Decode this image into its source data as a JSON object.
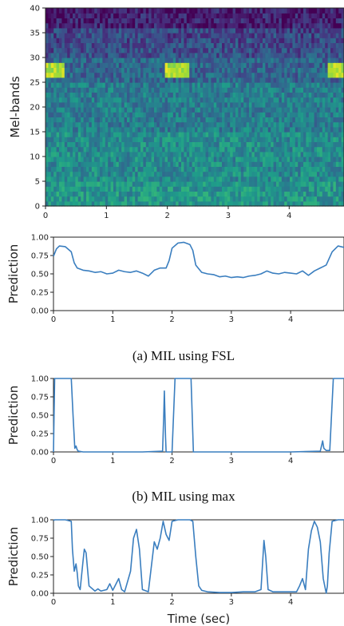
{
  "chart_data": [
    {
      "id": "spectrogram",
      "type": "heatmap",
      "title": "",
      "xlabel": "",
      "ylabel": "Mel-bands",
      "xlim": [
        0,
        4.9
      ],
      "ylim": [
        0,
        40
      ],
      "xticks": [
        "0",
        "1",
        "2",
        "3",
        "4"
      ],
      "yticks": [
        "0",
        "5",
        "10",
        "15",
        "20",
        "25",
        "30",
        "35",
        "40"
      ],
      "colormap": "viridis",
      "event_intervals": [
        [
          0.0,
          0.3
        ],
        [
          1.95,
          2.35
        ],
        [
          4.65,
          4.9
        ]
      ],
      "event_bands": [
        26,
        29
      ]
    },
    {
      "id": "fsl",
      "type": "line",
      "caption": "(a) MIL using FSL",
      "xlabel": "",
      "ylabel": "Prediction",
      "xlim": [
        0,
        4.9
      ],
      "ylim": [
        0,
        1
      ],
      "xticks": [
        "0",
        "1",
        "2",
        "3",
        "4"
      ],
      "yticks": [
        "0.00",
        "0.25",
        "0.50",
        "0.75",
        "1.00"
      ],
      "color": "#3a7ebf",
      "x": [
        0.0,
        0.05,
        0.1,
        0.2,
        0.3,
        0.35,
        0.4,
        0.5,
        0.6,
        0.7,
        0.8,
        0.9,
        1.0,
        1.1,
        1.2,
        1.3,
        1.4,
        1.5,
        1.6,
        1.7,
        1.8,
        1.9,
        1.95,
        2.0,
        2.1,
        2.2,
        2.3,
        2.35,
        2.4,
        2.5,
        2.6,
        2.7,
        2.8,
        2.9,
        3.0,
        3.1,
        3.2,
        3.3,
        3.4,
        3.5,
        3.6,
        3.7,
        3.8,
        3.9,
        4.0,
        4.1,
        4.2,
        4.3,
        4.4,
        4.5,
        4.55,
        4.6,
        4.7,
        4.8,
        4.9
      ],
      "y": [
        0.74,
        0.84,
        0.88,
        0.87,
        0.8,
        0.65,
        0.58,
        0.55,
        0.54,
        0.52,
        0.53,
        0.5,
        0.51,
        0.55,
        0.53,
        0.52,
        0.54,
        0.51,
        0.47,
        0.55,
        0.58,
        0.58,
        0.68,
        0.85,
        0.92,
        0.93,
        0.9,
        0.82,
        0.62,
        0.52,
        0.5,
        0.49,
        0.46,
        0.47,
        0.45,
        0.46,
        0.45,
        0.47,
        0.48,
        0.5,
        0.54,
        0.51,
        0.5,
        0.52,
        0.51,
        0.5,
        0.54,
        0.48,
        0.54,
        0.58,
        0.6,
        0.62,
        0.8,
        0.88,
        0.86
      ]
    },
    {
      "id": "max",
      "type": "line",
      "caption": "(b) MIL using max",
      "xlabel": "",
      "ylabel": "Prediction",
      "xlim": [
        0,
        4.9
      ],
      "ylim": [
        0,
        1
      ],
      "xticks": [
        "0",
        "1",
        "2",
        "3",
        "4"
      ],
      "yticks": [
        "0.00",
        "0.25",
        "0.50",
        "0.75",
        "1.00"
      ],
      "color": "#3a7ebf",
      "x": [
        0.0,
        0.02,
        0.05,
        0.3,
        0.33,
        0.36,
        0.38,
        0.4,
        0.42,
        0.5,
        1.0,
        1.5,
        1.84,
        1.86,
        1.87,
        1.89,
        1.9,
        1.95,
        2.0,
        2.05,
        2.3,
        2.32,
        2.36,
        2.4,
        3.0,
        4.0,
        4.5,
        4.54,
        4.56,
        4.6,
        4.66,
        4.72,
        4.9
      ],
      "y": [
        0.0,
        1.0,
        1.0,
        1.0,
        0.5,
        0.05,
        0.08,
        0.03,
        0.01,
        0.0,
        0.0,
        0.0,
        0.01,
        0.5,
        0.83,
        0.2,
        0.0,
        0.0,
        0.0,
        1.0,
        1.0,
        1.0,
        0.0,
        0.0,
        0.0,
        0.0,
        0.01,
        0.15,
        0.05,
        0.02,
        0.02,
        1.0,
        1.0
      ]
    },
    {
      "id": "attention",
      "type": "line",
      "caption": "",
      "xlabel": "Time (sec)",
      "ylabel": "Prediction",
      "xlim": [
        0,
        4.9
      ],
      "ylim": [
        0,
        1
      ],
      "xticks": [
        "0",
        "1",
        "2",
        "3",
        "4"
      ],
      "yticks": [
        "0.00",
        "0.25",
        "0.50",
        "0.75",
        "1.00"
      ],
      "color": "#3a7ebf",
      "x": [
        0.0,
        0.02,
        0.1,
        0.2,
        0.3,
        0.32,
        0.35,
        0.38,
        0.4,
        0.42,
        0.45,
        0.5,
        0.52,
        0.55,
        0.6,
        0.7,
        0.75,
        0.8,
        0.9,
        0.95,
        1.0,
        1.05,
        1.1,
        1.15,
        1.2,
        1.3,
        1.35,
        1.4,
        1.45,
        1.5,
        1.6,
        1.7,
        1.75,
        1.8,
        1.85,
        1.9,
        1.95,
        2.0,
        2.1,
        2.2,
        2.3,
        2.35,
        2.4,
        2.45,
        2.5,
        2.6,
        2.8,
        3.0,
        3.2,
        3.4,
        3.5,
        3.55,
        3.58,
        3.62,
        3.7,
        3.8,
        4.0,
        4.1,
        4.15,
        4.2,
        4.25,
        4.3,
        4.35,
        4.4,
        4.45,
        4.5,
        4.55,
        4.6,
        4.62,
        4.65,
        4.7,
        4.8,
        4.9
      ],
      "y": [
        0.99,
        1.0,
        1.0,
        1.0,
        0.98,
        0.6,
        0.3,
        0.4,
        0.28,
        0.1,
        0.05,
        0.45,
        0.6,
        0.55,
        0.1,
        0.03,
        0.06,
        0.03,
        0.05,
        0.13,
        0.04,
        0.12,
        0.2,
        0.05,
        0.02,
        0.3,
        0.75,
        0.87,
        0.6,
        0.05,
        0.02,
        0.7,
        0.6,
        0.75,
        0.98,
        0.8,
        0.72,
        0.98,
        1.0,
        1.0,
        1.0,
        0.98,
        0.5,
        0.1,
        0.04,
        0.02,
        0.01,
        0.01,
        0.02,
        0.02,
        0.05,
        0.72,
        0.5,
        0.05,
        0.02,
        0.02,
        0.02,
        0.02,
        0.1,
        0.2,
        0.05,
        0.6,
        0.85,
        0.98,
        0.9,
        0.7,
        0.2,
        0.0,
        0.1,
        0.55,
        0.98,
        1.0,
        1.0
      ]
    }
  ]
}
